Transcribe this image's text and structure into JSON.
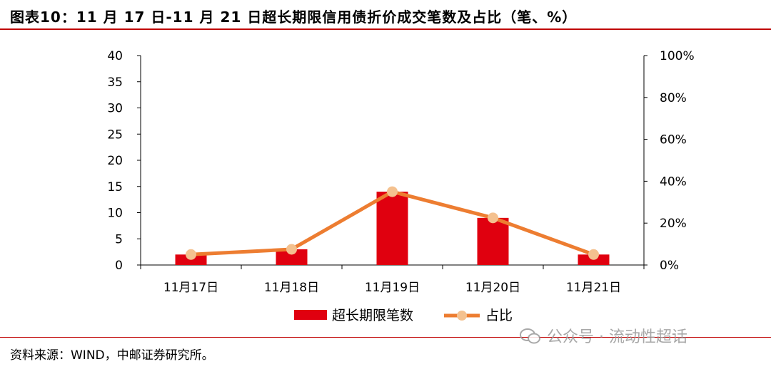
{
  "header": {
    "title": "图表10：11 月 17 日-11 月 21 日超长期限信用债折价成交笔数及占比（笔、%）"
  },
  "footer": {
    "source": "资料来源：WIND，中邮证券研究所。",
    "watermark": "公众号 · 流动性超话"
  },
  "colors": {
    "bar": "#e0000f",
    "line": "#ed7d31",
    "marker": "#f4c18f",
    "rule": "#c00000"
  },
  "chart_data": {
    "type": "bar",
    "categories": [
      "11月17日",
      "11月18日",
      "11月19日",
      "11月20日",
      "11月21日"
    ],
    "series": [
      {
        "name": "超长期限笔数",
        "type": "bar",
        "axis": "left",
        "values": [
          2,
          3,
          14,
          9,
          2
        ]
      },
      {
        "name": "占比",
        "type": "line",
        "axis": "right",
        "values": [
          0.05,
          0.075,
          0.35,
          0.225,
          0.05
        ]
      }
    ],
    "y_left": {
      "min": 0,
      "max": 40,
      "ticks": [
        "0",
        "5",
        "10",
        "15",
        "20",
        "25",
        "30",
        "35",
        "40"
      ]
    },
    "y_right": {
      "min": 0,
      "max": 1,
      "ticks": [
        "0%",
        "20%",
        "40%",
        "60%",
        "80%",
        "100%"
      ]
    },
    "grid": false,
    "legend": "bottom"
  }
}
